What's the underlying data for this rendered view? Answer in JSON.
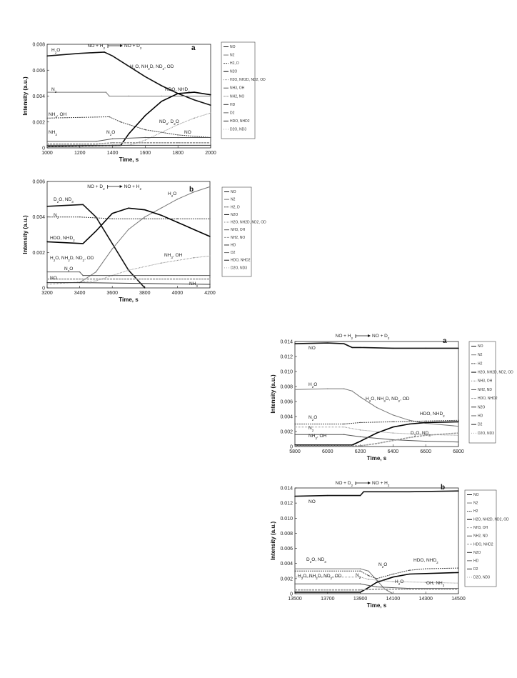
{
  "chart_data": [
    {
      "type": "line",
      "panel": "a",
      "xlabel": "Time, s",
      "ylabel": "Intensity (a.u.)",
      "xlim": [
        1000,
        2000
      ],
      "ylim": [
        0,
        0.008
      ],
      "xticks": [
        "1000",
        "1200",
        "1400",
        "1600",
        "1800",
        "2000"
      ],
      "yticks": [
        "0",
        "0.002",
        "0.004",
        "0.006",
        "0.008"
      ],
      "gas_switch": {
        "from": "NO + H2",
        "to": "NO + D2"
      },
      "legend": [
        "NO",
        "N2",
        "H2, D",
        "N2O",
        "H2O, NH2D, ND2, OD",
        "NH3, OH",
        "NH2, NO",
        "HD",
        "D2",
        "HDO, NHD2",
        "D2O, ND3"
      ],
      "annotations": [
        "H2O",
        "H2O, NH2D, ND2, OD",
        "N2",
        "HDO, NHD2",
        "NH3, OH",
        "ND3, D2O",
        "NH3",
        "N2O",
        "NO"
      ],
      "series": [
        {
          "name": "H2O",
          "x": [
            1000,
            1200,
            1350,
            1400,
            1500,
            1600,
            1700,
            1800,
            1900,
            2000
          ],
          "y": [
            0.0071,
            0.0073,
            0.0074,
            0.0071,
            0.0063,
            0.0055,
            0.0048,
            0.0042,
            0.0037,
            0.0033
          ]
        },
        {
          "name": "N2",
          "x": [
            1000,
            1360,
            1380,
            1500,
            1700,
            2000
          ],
          "y": [
            0.0043,
            0.0043,
            0.004,
            0.004,
            0.004,
            0.004
          ]
        },
        {
          "name": "NH3, OH",
          "x": [
            1000,
            1380,
            1450,
            1600,
            1800,
            2000
          ],
          "y": [
            0.0023,
            0.0024,
            0.002,
            0.0014,
            0.001,
            0.0008
          ]
        },
        {
          "name": "HDO, NHD2",
          "x": [
            1000,
            1450,
            1500,
            1600,
            1700,
            1800,
            1900,
            2000
          ],
          "y": [
            0.0001,
            0.0002,
            0.0011,
            0.0025,
            0.0036,
            0.0042,
            0.0043,
            0.0041
          ]
        },
        {
          "name": "D2O, ND3",
          "x": [
            1000,
            1500,
            1600,
            1700,
            1800,
            1900,
            2000
          ],
          "y": [
            0.0001,
            0.0002,
            0.0006,
            0.0012,
            0.0018,
            0.0023,
            0.0027
          ]
        },
        {
          "name": "NO",
          "x": [
            1000,
            1300,
            1400,
            1600,
            1800,
            2000
          ],
          "y": [
            0.0005,
            0.0005,
            0.0007,
            0.0008,
            0.0008,
            0.0008
          ]
        },
        {
          "name": "N2O",
          "x": [
            1000,
            1300,
            1400,
            1600,
            1800,
            2000
          ],
          "y": [
            0.0003,
            0.0003,
            0.0004,
            0.0004,
            0.0004,
            0.0004
          ]
        },
        {
          "name": "NH2, NO",
          "x": [
            1000,
            1400,
            2000
          ],
          "y": [
            0.0002,
            0.0002,
            0.0002
          ]
        }
      ]
    },
    {
      "type": "line",
      "panel": "b",
      "xlabel": "Time, s",
      "ylabel": "Intensity (a.u.)",
      "xlim": [
        3200,
        4200
      ],
      "ylim": [
        0,
        0.006
      ],
      "xticks": [
        "3200",
        "3400",
        "3600",
        "3800",
        "4000",
        "4200"
      ],
      "yticks": [
        "0",
        "0.002",
        "0.004",
        "0.006"
      ],
      "gas_switch": {
        "from": "NO + D2",
        "to": "NO + H2"
      },
      "legend": [
        "NO",
        "N2",
        "H2, D",
        "N2O",
        "H2O, NH2D, ND2, OD",
        "NH3, OH",
        "NH2, NO",
        "HD",
        "D2",
        "HDO, NHD2",
        "D2O, ND3"
      ],
      "annotations": [
        "D2O, ND3",
        "H2O",
        "N2",
        "HDO, NHD2",
        "NH3, OH",
        "H2O, NH2D, ND2, OD",
        "N2O",
        "NO",
        "NH3"
      ],
      "series": [
        {
          "name": "D2O, ND3",
          "x": [
            3200,
            3420,
            3500,
            3600,
            3700,
            3800
          ],
          "y": [
            0.0046,
            0.0047,
            0.004,
            0.0025,
            0.001,
            0.0
          ]
        },
        {
          "name": "H2O",
          "x": [
            3200,
            3400,
            3500,
            3600,
            3700,
            3800,
            3900,
            4000,
            4100,
            4200
          ],
          "y": [
            0.0003,
            0.0003,
            0.0009,
            0.0022,
            0.0033,
            0.004,
            0.0045,
            0.005,
            0.0054,
            0.0057
          ]
        },
        {
          "name": "N2",
          "x": [
            3200,
            3400,
            3600,
            3800,
            4000,
            4200
          ],
          "y": [
            0.004,
            0.004,
            0.0039,
            0.0039,
            0.0039,
            0.0039
          ]
        },
        {
          "name": "HDO, NHD2",
          "x": [
            3200,
            3420,
            3500,
            3600,
            3700,
            3800,
            3900,
            4000,
            4100,
            4200
          ],
          "y": [
            0.0026,
            0.0025,
            0.0032,
            0.0042,
            0.0045,
            0.0044,
            0.0041,
            0.0037,
            0.0033,
            0.0029
          ]
        },
        {
          "name": "NH3, OH",
          "x": [
            3200,
            3500,
            3700,
            3900,
            4100,
            4200
          ],
          "y": [
            0.0002,
            0.0004,
            0.001,
            0.0014,
            0.0017,
            0.0018
          ]
        },
        {
          "name": "N2O",
          "x": [
            3200,
            3400,
            3420,
            3600,
            4200
          ],
          "y": [
            0.0009,
            0.0009,
            0.0007,
            0.0007,
            0.0007
          ]
        },
        {
          "name": "NO",
          "x": [
            3200,
            3400,
            4200
          ],
          "y": [
            0.0005,
            0.0005,
            0.0005
          ]
        },
        {
          "name": "NH2, NO",
          "x": [
            3200,
            3400,
            4200
          ],
          "y": [
            0.0003,
            0.0003,
            0.0002
          ]
        }
      ]
    },
    {
      "type": "line",
      "panel": "a",
      "xlabel": "Time, s",
      "ylabel": "Intensity (a.u.)",
      "xlim": [
        5800,
        6800
      ],
      "ylim": [
        0,
        0.014
      ],
      "xticks": [
        "5800",
        "6000",
        "6200",
        "6400",
        "6600",
        "6800"
      ],
      "yticks": [
        "0",
        "0.002",
        "0.004",
        "0.006",
        "0.008",
        "0.010",
        "0.012",
        "0.014"
      ],
      "gas_switch": {
        "from": "NO + H2",
        "to": "NO + D2"
      },
      "legend": [
        "NO",
        "N2",
        "H2",
        "H2O, NH2D, ND2, OD",
        "NH3, OH",
        "NH2, ND",
        "HDO, NHD2",
        "N2O",
        "HD",
        "D2",
        "D2O, ND3"
      ],
      "annotations": [
        "NO",
        "H2O",
        "H2O, NH3D, ND2, OD",
        "N2O",
        "HDO, NHD2",
        "N2",
        "NH3, OH",
        "D2O, ND3"
      ],
      "series": [
        {
          "name": "NO",
          "x": [
            5800,
            6000,
            6100,
            6150,
            6200,
            6400,
            6600,
            6800
          ],
          "y": [
            0.0137,
            0.0138,
            0.0137,
            0.0132,
            0.0132,
            0.0131,
            0.0131,
            0.0131
          ]
        },
        {
          "name": "H2O",
          "x": [
            5800,
            6000,
            6100,
            6150,
            6200,
            6300,
            6400,
            6500,
            6600,
            6800
          ],
          "y": [
            0.0076,
            0.0077,
            0.0077,
            0.0074,
            0.0066,
            0.0052,
            0.0042,
            0.0035,
            0.0031,
            0.0027
          ]
        },
        {
          "name": "N2O",
          "x": [
            5800,
            6100,
            6200,
            6400,
            6600,
            6800
          ],
          "y": [
            0.003,
            0.003,
            0.0032,
            0.0033,
            0.0034,
            0.0035
          ]
        },
        {
          "name": "HDO, NHD2",
          "x": [
            5800,
            6150,
            6200,
            6300,
            6400,
            6500,
            6600,
            6800
          ],
          "y": [
            0.0002,
            0.0002,
            0.0007,
            0.0018,
            0.0026,
            0.003,
            0.0032,
            0.0033
          ]
        },
        {
          "name": "N2",
          "x": [
            5800,
            6100,
            6200,
            6400,
            6600,
            6800
          ],
          "y": [
            0.0026,
            0.0026,
            0.0022,
            0.0018,
            0.0016,
            0.0015
          ]
        },
        {
          "name": "NH3, OH",
          "x": [
            5800,
            6100,
            6200,
            6400,
            6600,
            6800
          ],
          "y": [
            0.0016,
            0.0016,
            0.0013,
            0.0009,
            0.0007,
            0.0006
          ]
        },
        {
          "name": "D2O, ND3",
          "x": [
            5800,
            6200,
            6300,
            6400,
            6500,
            6600,
            6800
          ],
          "y": [
            0.0001,
            0.0001,
            0.0004,
            0.0008,
            0.0012,
            0.0015,
            0.0018
          ]
        }
      ]
    },
    {
      "type": "line",
      "panel": "b",
      "xlabel": "Time, s",
      "ylabel": "Intensity (a.u.)",
      "xlim": [
        13500,
        14500
      ],
      "ylim": [
        0,
        0.014
      ],
      "xticks": [
        "13500",
        "13700",
        "13900",
        "14100",
        "14300",
        "14500"
      ],
      "yticks": [
        "0",
        "0.002",
        "0.004",
        "0.006",
        "0.008",
        "0.010",
        "0.012",
        "0.014"
      ],
      "gas_switch": {
        "from": "NO + D2",
        "to": "NO + H2"
      },
      "legend": [
        "NO",
        "N2",
        "H2",
        "H2O, NH2D, ND2, OD",
        "NH3, OH",
        "NH2, ND",
        "HDO, NHD2",
        "N2O",
        "HD",
        "D2",
        "D2O, ND3"
      ],
      "annotations": [
        "NO",
        "D2O, ND3",
        "N2O",
        "HDO, NHD2",
        "H2O, NH2D, ND2, OD",
        "N2",
        "H2O",
        "OH, NH3"
      ],
      "series": [
        {
          "name": "NO",
          "x": [
            13500,
            13700,
            13900,
            13920,
            14000,
            14200,
            14500
          ],
          "y": [
            0.0129,
            0.013,
            0.013,
            0.0135,
            0.0135,
            0.0135,
            0.0136
          ]
        },
        {
          "name": "D2O, ND3",
          "x": [
            13500,
            13900,
            13950,
            14000,
            14050,
            14100
          ],
          "y": [
            0.0033,
            0.0033,
            0.003,
            0.0018,
            0.0006,
            0.0
          ]
        },
        {
          "name": "HDO, NHD2",
          "x": [
            13500,
            13900,
            13950,
            14000,
            14100,
            14200,
            14300,
            14500
          ],
          "y": [
            0.003,
            0.003,
            0.0024,
            0.002,
            0.0026,
            0.0031,
            0.0033,
            0.0034
          ]
        },
        {
          "name": "H2O",
          "x": [
            13500,
            13900,
            13950,
            14000,
            14100,
            14200,
            14500
          ],
          "y": [
            0.0002,
            0.0002,
            0.0008,
            0.0015,
            0.0022,
            0.0026,
            0.0028
          ]
        },
        {
          "name": "N2",
          "x": [
            13500,
            13900,
            13950,
            14100,
            14300,
            14500
          ],
          "y": [
            0.0022,
            0.0022,
            0.0019,
            0.0016,
            0.0015,
            0.0014
          ]
        },
        {
          "name": "OH, NH3",
          "x": [
            13500,
            13900,
            14000,
            14200,
            14500
          ],
          "y": [
            0.0013,
            0.0013,
            0.0009,
            0.0007,
            0.0007
          ]
        },
        {
          "name": "N2O",
          "x": [
            13500,
            13900,
            14000,
            14500
          ],
          "y": [
            0.0005,
            0.0005,
            0.0006,
            0.0006
          ]
        }
      ]
    }
  ]
}
